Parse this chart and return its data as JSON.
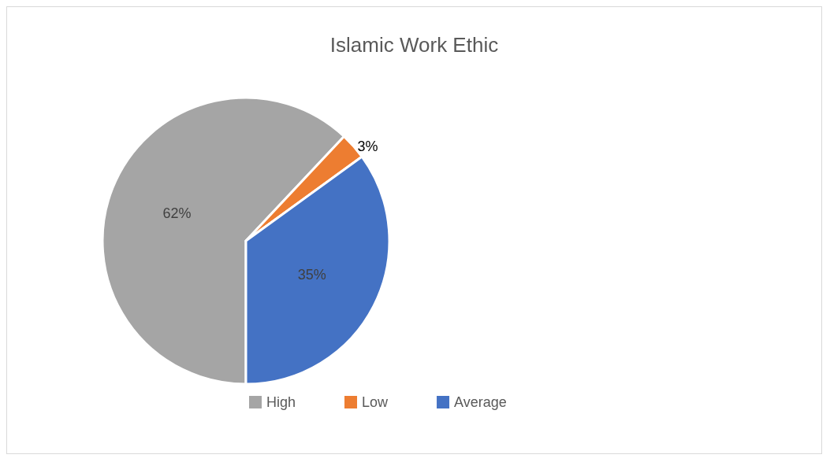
{
  "chart_data": {
    "type": "pie",
    "title": "Islamic Work Ethic",
    "categories": [
      "High",
      "Low",
      "Average"
    ],
    "values": [
      62,
      3,
      35
    ],
    "colors": [
      "#a5a5a5",
      "#ed7d31",
      "#4472c4"
    ],
    "value_labels": [
      "62%",
      "3%",
      "35%"
    ],
    "legend": "bottom"
  }
}
